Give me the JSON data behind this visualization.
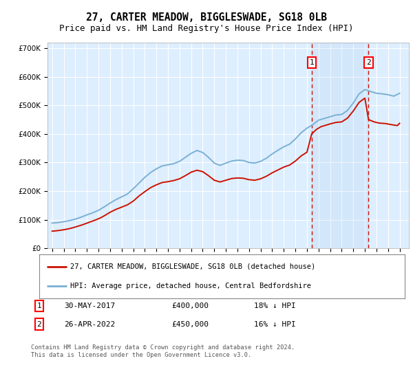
{
  "title": "27, CARTER MEADOW, BIGGLESWADE, SG18 0LB",
  "subtitle": "Price paid vs. HM Land Registry's House Price Index (HPI)",
  "title_fontsize": 10.5,
  "subtitle_fontsize": 9.5,
  "background_color": "#ffffff",
  "plot_bg_color": "#ddeeff",
  "grid_color": "#ffffff",
  "hpi_color": "#7ab0d4",
  "price_color": "#cc1100",
  "marker1_date": 2017.41,
  "marker2_date": 2022.32,
  "marker1_price": 400000,
  "marker2_price": 450000,
  "legend_line1": "27, CARTER MEADOW, BIGGLESWADE, SG18 0LB (detached house)",
  "legend_line2": "HPI: Average price, detached house, Central Bedfordshire",
  "footer": "Contains HM Land Registry data © Crown copyright and database right 2024.\nThis data is licensed under the Open Government Licence v3.0.",
  "ylim": [
    0,
    720000
  ],
  "yticks": [
    0,
    100000,
    200000,
    300000,
    400000,
    500000,
    600000,
    700000
  ],
  "xlim_start": 1994.6,
  "xlim_end": 2025.8,
  "hpi_x": [
    1995.0,
    1995.5,
    1996.0,
    1996.5,
    1997.0,
    1997.5,
    1998.0,
    1998.5,
    1999.0,
    1999.5,
    2000.0,
    2000.5,
    2001.0,
    2001.5,
    2002.0,
    2002.5,
    2003.0,
    2003.5,
    2004.0,
    2004.5,
    2005.0,
    2005.5,
    2006.0,
    2006.5,
    2007.0,
    2007.5,
    2008.0,
    2008.5,
    2009.0,
    2009.5,
    2010.0,
    2010.5,
    2011.0,
    2011.5,
    2012.0,
    2012.5,
    2013.0,
    2013.5,
    2014.0,
    2014.5,
    2015.0,
    2015.5,
    2016.0,
    2016.5,
    2017.0,
    2017.5,
    2018.0,
    2018.5,
    2019.0,
    2019.5,
    2020.0,
    2020.5,
    2021.0,
    2021.5,
    2022.0,
    2022.5,
    2023.0,
    2023.5,
    2024.0,
    2024.5,
    2025.0
  ],
  "hpi_y": [
    88000,
    90000,
    93000,
    97000,
    102000,
    109000,
    117000,
    124000,
    133000,
    145000,
    158000,
    170000,
    180000,
    190000,
    208000,
    228000,
    248000,
    265000,
    278000,
    288000,
    292000,
    296000,
    304000,
    318000,
    332000,
    342000,
    335000,
    318000,
    298000,
    290000,
    298000,
    305000,
    308000,
    307000,
    300000,
    298000,
    304000,
    315000,
    330000,
    343000,
    355000,
    364000,
    382000,
    404000,
    420000,
    432000,
    448000,
    454000,
    460000,
    466000,
    468000,
    482000,
    508000,
    540000,
    555000,
    548000,
    542000,
    540000,
    537000,
    532000,
    542000
  ],
  "price_x": [
    1995.0,
    1995.3,
    1995.7,
    1996.0,
    1996.4,
    1996.8,
    1997.2,
    1997.6,
    1998.0,
    1998.4,
    1998.8,
    1999.2,
    1999.6,
    2000.0,
    2000.5,
    2001.0,
    2001.5,
    2002.0,
    2002.5,
    2003.0,
    2003.5,
    2004.0,
    2004.5,
    2005.0,
    2005.5,
    2006.0,
    2006.5,
    2007.0,
    2007.5,
    2008.0,
    2008.5,
    2009.0,
    2009.5,
    2010.0,
    2010.5,
    2011.0,
    2011.5,
    2012.0,
    2012.5,
    2013.0,
    2013.5,
    2014.0,
    2014.5,
    2015.0,
    2015.5,
    2016.0,
    2016.5,
    2017.0,
    2017.41,
    2017.41,
    2017.8,
    2018.2,
    2018.6,
    2019.0,
    2019.5,
    2020.0,
    2020.5,
    2021.0,
    2021.5,
    2022.0,
    2022.32,
    2022.32,
    2022.8,
    2023.2,
    2023.8,
    2024.2,
    2024.8,
    2025.0
  ],
  "price_y": [
    60000,
    61000,
    63000,
    65000,
    68000,
    72000,
    77000,
    82000,
    88000,
    94000,
    100000,
    107000,
    116000,
    126000,
    136000,
    144000,
    152000,
    165000,
    183000,
    198000,
    212000,
    222000,
    230000,
    233000,
    237000,
    243000,
    254000,
    266000,
    273000,
    268000,
    254000,
    238000,
    232000,
    238000,
    244000,
    246000,
    245000,
    240000,
    238000,
    243000,
    252000,
    264000,
    274000,
    284000,
    291000,
    305000,
    323000,
    336000,
    400000,
    400000,
    415000,
    425000,
    430000,
    435000,
    440000,
    442000,
    455000,
    480000,
    510000,
    525000,
    450000,
    450000,
    442000,
    438000,
    436000,
    433000,
    429000,
    437000
  ]
}
